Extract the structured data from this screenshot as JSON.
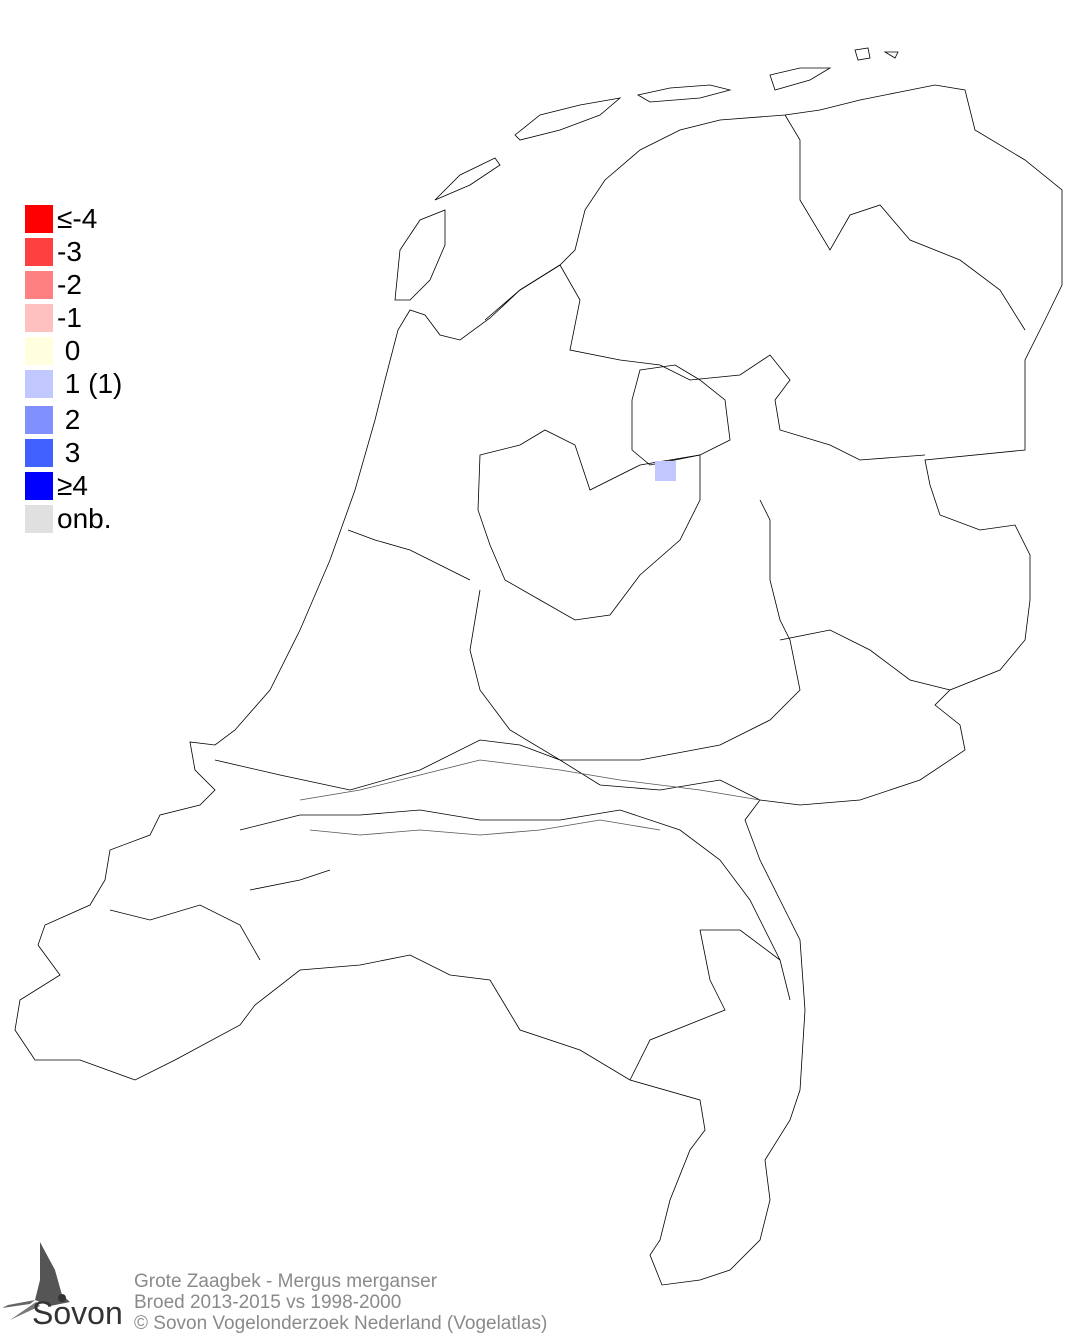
{
  "legend": {
    "items": [
      {
        "label": "≤-4",
        "color": "#ff0000"
      },
      {
        "label": "-3",
        "color": "#ff4040"
      },
      {
        "label": "-2",
        "color": "#ff8080"
      },
      {
        "label": "-1",
        "color": "#ffc0c0"
      },
      {
        "label": " 0",
        "color": "#ffffe0"
      },
      {
        "label": " 1 (1)",
        "color": "#c0c8ff"
      },
      {
        "label": " 2",
        "color": "#8090ff"
      },
      {
        "label": " 3",
        "color": "#4060ff"
      },
      {
        "label": "≥4",
        "color": "#0000ff"
      },
      {
        "label": "onb.",
        "color": "#e0e0e0"
      }
    ]
  },
  "map": {
    "region": "Netherlands",
    "highlighted_cells": [
      {
        "class": " 1 (1)",
        "color": "#c0c8ff"
      }
    ]
  },
  "footer": {
    "species": "Grote Zaagbek - Mergus merganser",
    "period": "Broed 2013-2015 vs 1998-2000",
    "copyright": "© Sovon Vogelonderzoek Nederland (Vogelatlas)"
  },
  "logo": {
    "text": "Sovon"
  }
}
